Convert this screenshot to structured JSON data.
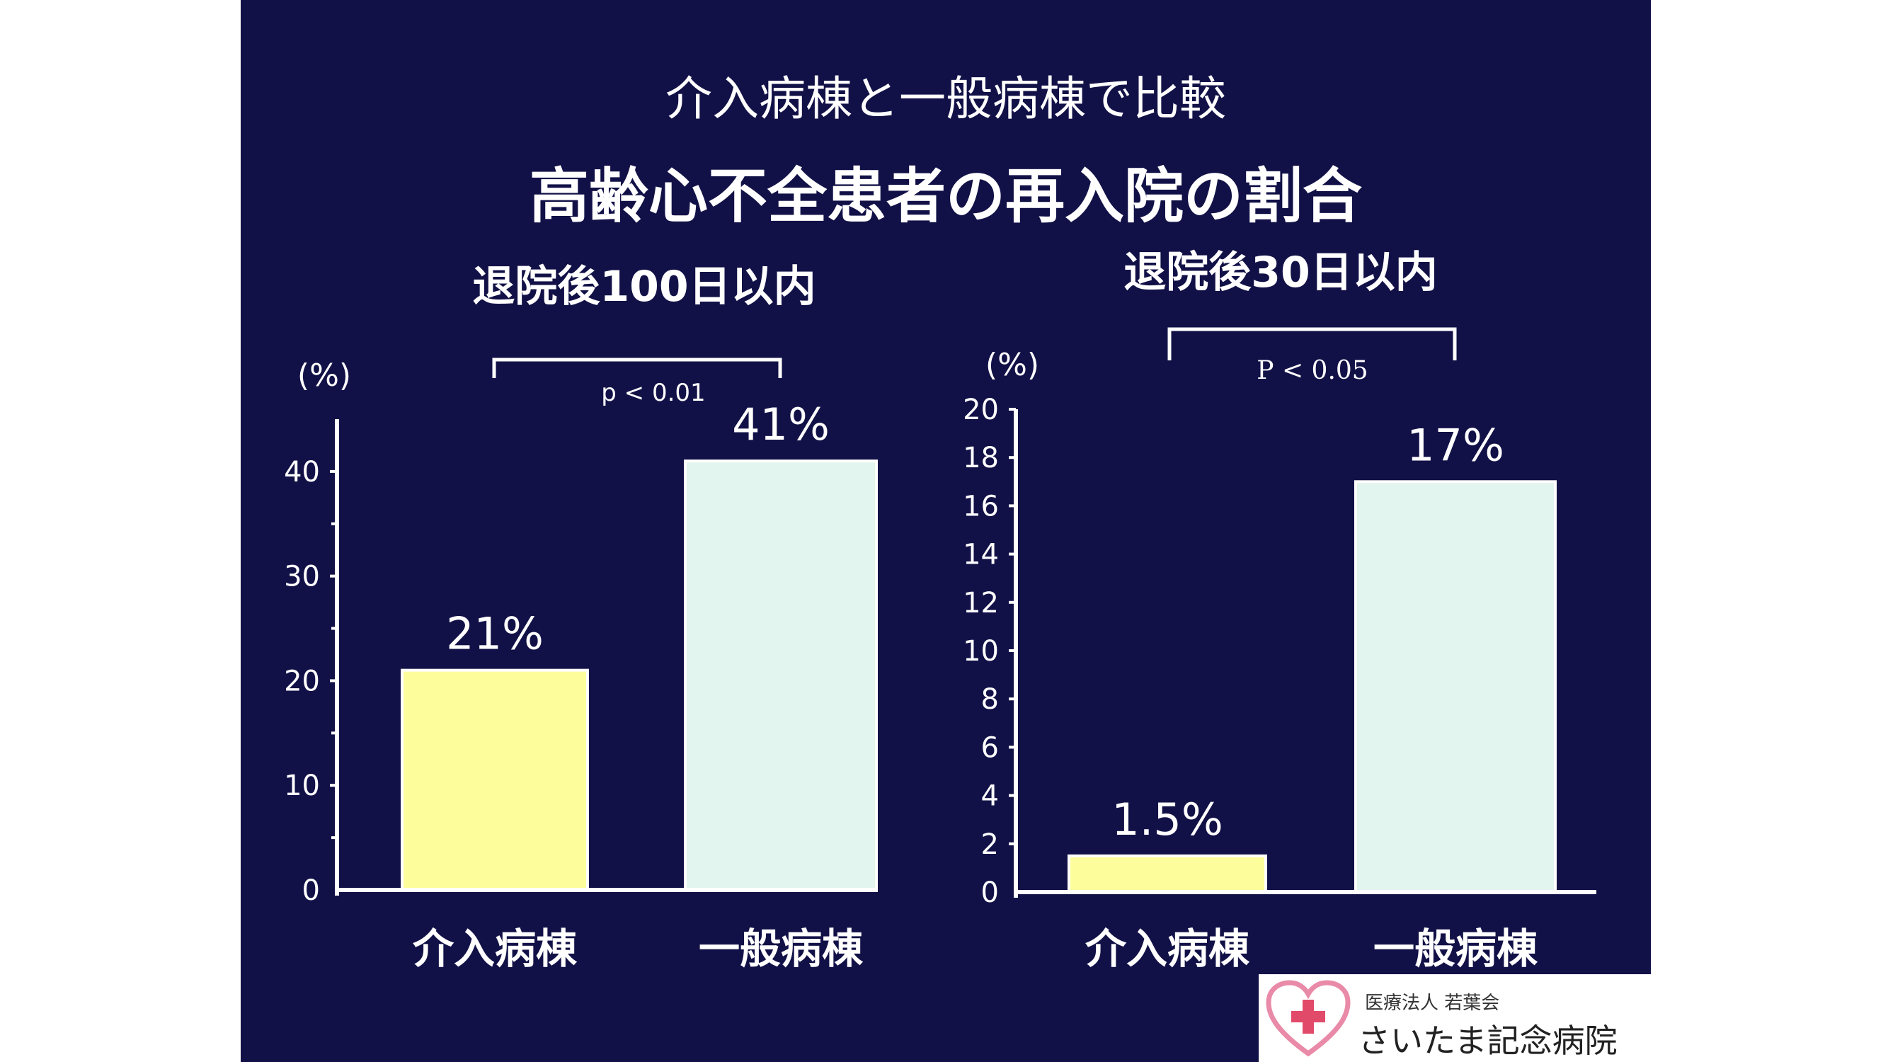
{
  "slide": {
    "subtitle": "介入病棟と一般病棟で比較",
    "title": "高齢心不全患者の再入院の割合",
    "colors": {
      "background": "#121147",
      "bar_intervention": "#fdfd9c",
      "bar_general": "#e2f5ee",
      "text": "#ffffff"
    }
  },
  "chart_data": [
    {
      "type": "bar",
      "title": "退院後100日以内",
      "ylabel": "(%)",
      "categories": [
        "介入病棟",
        "一般病棟"
      ],
      "values": [
        21,
        41
      ],
      "value_labels": [
        "21%",
        "41%"
      ],
      "ylim": [
        0,
        45
      ],
      "yticks": [
        "0",
        "10",
        "20",
        "30",
        "40"
      ],
      "annotation": "p < 0.01"
    },
    {
      "type": "bar",
      "title": "退院後30日以内",
      "ylabel": "(%)",
      "categories": [
        "介入病棟",
        "一般病棟"
      ],
      "values": [
        1.5,
        17
      ],
      "value_labels": [
        "1.5%",
        "17%"
      ],
      "ylim": [
        0,
        20
      ],
      "yticks": [
        "0",
        "2",
        "4",
        "6",
        "8",
        "10",
        "12",
        "14",
        "16",
        "18",
        "20"
      ],
      "annotation": "P < 0.05"
    }
  ],
  "logo": {
    "org": "医療法人 若葉会",
    "name": "さいたま記念病院",
    "icon": "heart-cross-icon"
  }
}
